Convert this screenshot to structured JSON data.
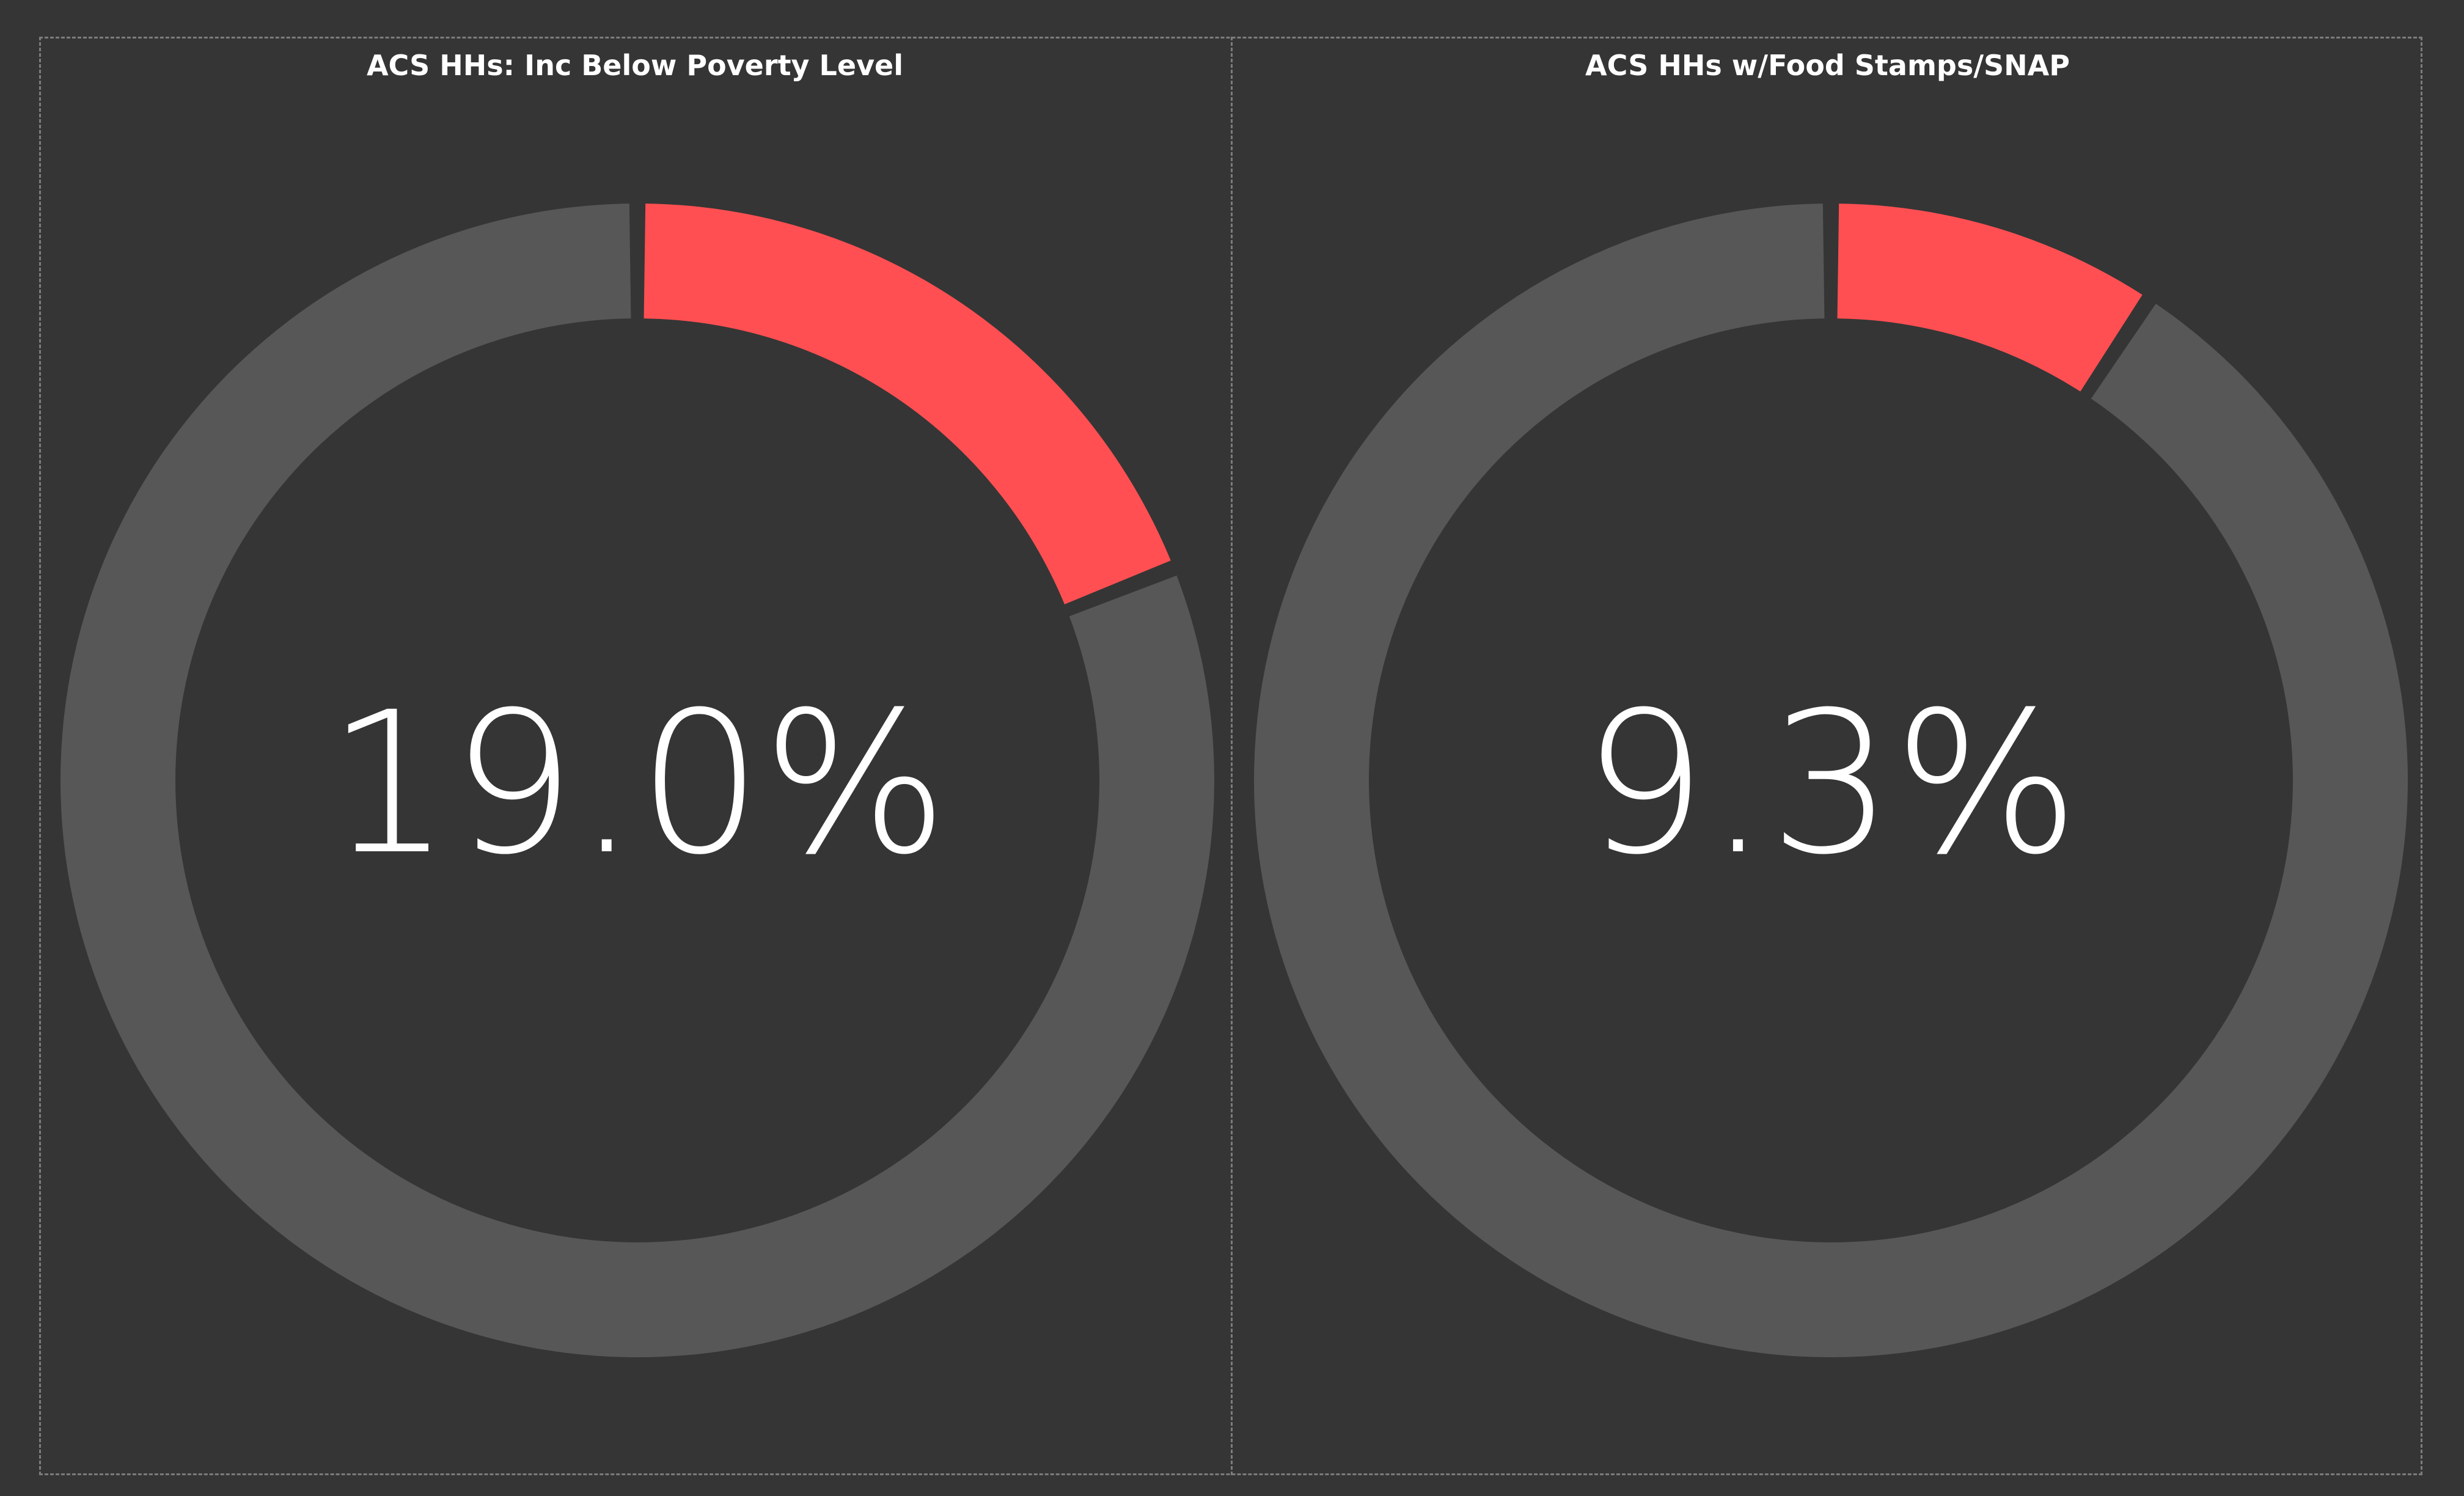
{
  "chart_data": [
    {
      "type": "pie",
      "title": "ACS HHs: Inc Below Poverty Level",
      "value_percent": 19.0,
      "value_label": "19.0%",
      "colors": {
        "value": "#ff4f52",
        "remainder": "#575757"
      }
    },
    {
      "type": "pie",
      "title": "ACS HHs w/Food Stamps/SNAP",
      "value_percent": 9.3,
      "value_label": "9.3%",
      "colors": {
        "value": "#ff4f52",
        "remainder": "#575757"
      }
    }
  ],
  "theme": {
    "background": "#353535",
    "text": "#ffffff",
    "border": "#7c7c7c"
  }
}
